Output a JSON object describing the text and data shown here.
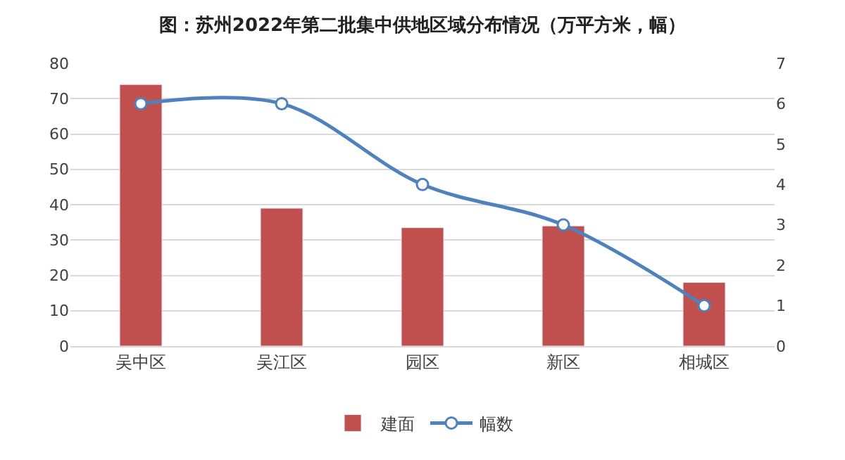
{
  "chart_data": {
    "type": "bar",
    "title": "图：苏州2022年第二批集中供地区域分布情况（万平方米，幅）",
    "categories": [
      "吴中区",
      "吴江区",
      "园区",
      "新区",
      "相城区"
    ],
    "series": [
      {
        "name": "建面",
        "color": "#c0504d",
        "values": [
          74,
          39,
          33.5,
          34,
          18
        ]
      },
      {
        "name": "幅数",
        "color": "#4f81bd",
        "type": "line",
        "axis": "y2",
        "marker": "circle",
        "values": [
          6,
          6,
          4,
          3,
          1
        ]
      }
    ],
    "ylim": [
      0,
      80
    ],
    "yticks": [
      0,
      10,
      20,
      30,
      40,
      50,
      60,
      70,
      80
    ],
    "y2lim": [
      0,
      7
    ],
    "y2ticks": [
      0,
      1,
      2,
      3,
      4,
      5,
      6,
      7
    ],
    "grid": "y",
    "legend": "bottom"
  }
}
